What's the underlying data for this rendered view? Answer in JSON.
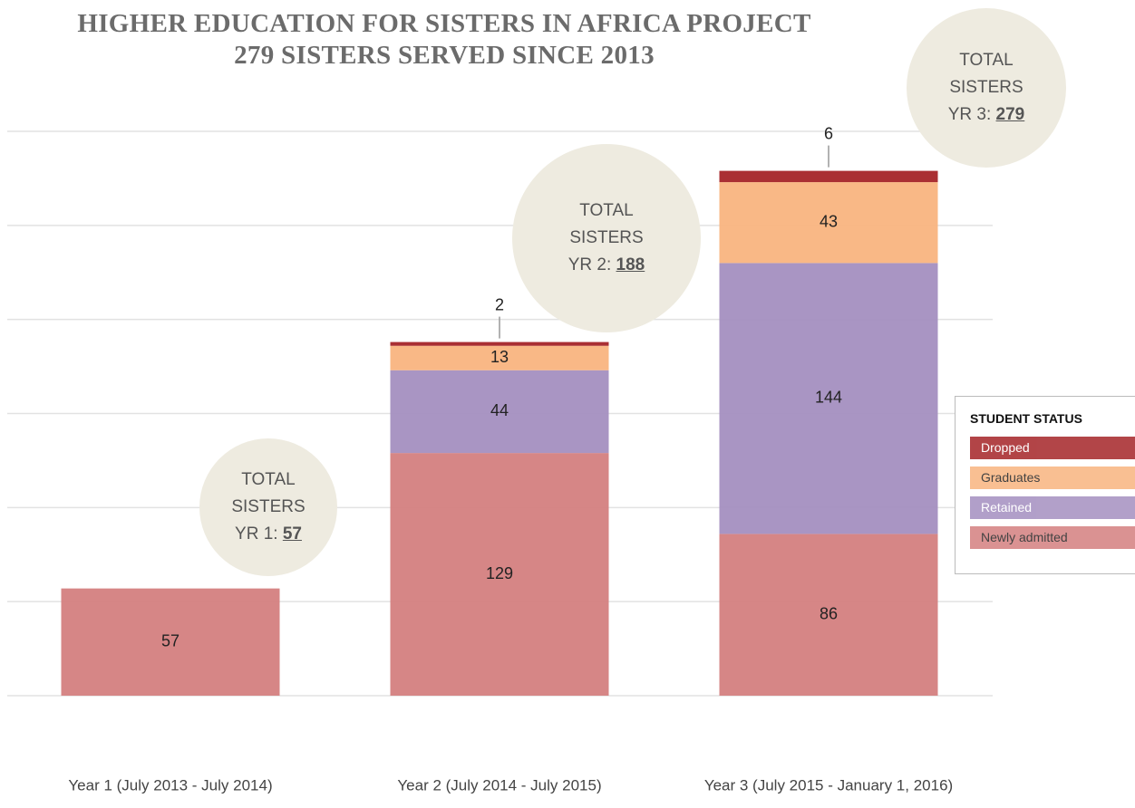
{
  "chart_data": {
    "type": "stacked_bar",
    "title": "HIGHER EDUCATION FOR SISTERS IN AFRICA PROJECT",
    "subtitle": "279 SISTERS SERVED SINCE 2013",
    "categories": [
      "Year 1 (July 2013 - July 2014)",
      "Year 2 (July 2014 - July 2015)",
      "Year 3 (July 2015 - January 1, 2016)"
    ],
    "series": [
      {
        "name": "Newly admitted",
        "color": "#d48080",
        "values": [
          57,
          129,
          86
        ]
      },
      {
        "name": "Retained",
        "color": "#a48fc0",
        "values": [
          null,
          44,
          144
        ]
      },
      {
        "name": "Graduates",
        "color": "#f9b47f",
        "values": [
          null,
          13,
          43
        ]
      },
      {
        "name": "Dropped",
        "color": "#a52428",
        "values": [
          null,
          2,
          6
        ]
      }
    ],
    "legend_title": "STUDENT STATUS",
    "annotations": [
      {
        "label": "TOTAL SISTERS YR 1:",
        "value": 57
      },
      {
        "label": "TOTAL SISTERS YR 2:",
        "value": 188
      },
      {
        "label": "TOTAL SISTERS YR 3:",
        "value": 279
      }
    ],
    "ylim": [
      0,
      300
    ],
    "yticks": [
      0,
      50,
      100,
      150,
      200,
      250,
      300
    ],
    "grid": true
  }
}
